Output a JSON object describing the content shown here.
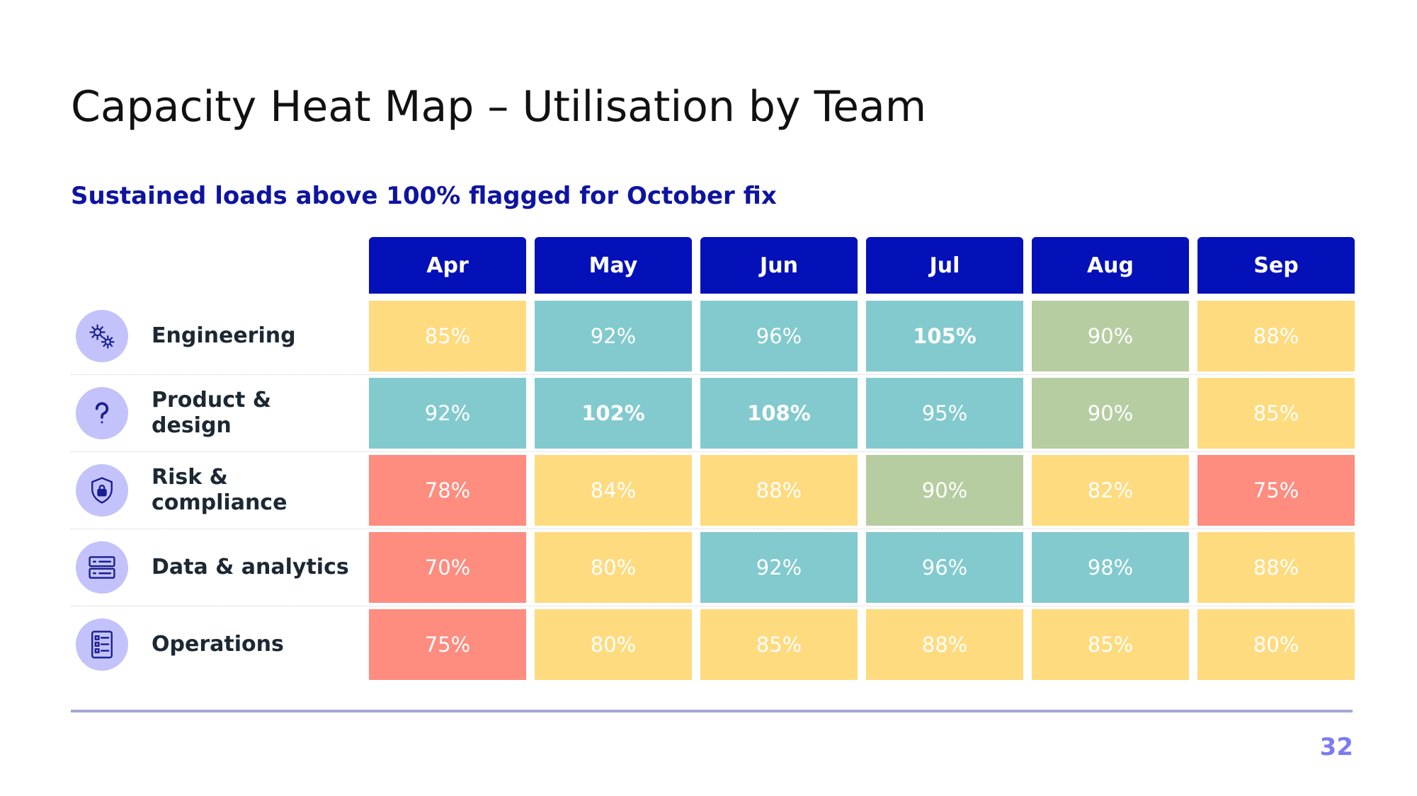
{
  "title": "Capacity Heat Map – Utilisation by Team",
  "subtitle": "Sustained loads above 100% flagged for October fix",
  "page_number": "32",
  "colors": {
    "header": "#0410b8",
    "subtitle": "#0e14a0",
    "icon_bg": "#c3c2fb",
    "icon_fg": "#1a1f8f",
    "rule": "#a7a6d6",
    "page_number": "#7c7cf0",
    "band_low": "#fe8c7f",
    "band_mid": "#ffdb7f",
    "band_90": "#b6cda1",
    "band_high": "#82cace"
  },
  "chart_data": {
    "type": "heatmap",
    "title": "Capacity Heat Map – Utilisation by Team",
    "subtitle": "Sustained loads above 100% flagged for October fix",
    "columns": [
      "Apr",
      "May",
      "Jun",
      "Jul",
      "Aug",
      "Sep"
    ],
    "rows": [
      {
        "name": "Engineering",
        "icon": "gears-icon",
        "values": [
          85,
          92,
          96,
          105,
          90,
          88
        ]
      },
      {
        "name": "Product & design",
        "icon": "question-icon",
        "values": [
          92,
          102,
          108,
          95,
          90,
          85
        ]
      },
      {
        "name": "Risk & compliance",
        "icon": "shield-lock-icon",
        "values": [
          78,
          84,
          88,
          90,
          82,
          75
        ]
      },
      {
        "name": "Data & analytics",
        "icon": "server-icon",
        "values": [
          70,
          80,
          92,
          96,
          98,
          88
        ]
      },
      {
        "name": "Operations",
        "icon": "checklist-icon",
        "values": [
          75,
          80,
          85,
          88,
          85,
          80
        ]
      }
    ],
    "unit": "%",
    "flag_threshold": 100
  }
}
